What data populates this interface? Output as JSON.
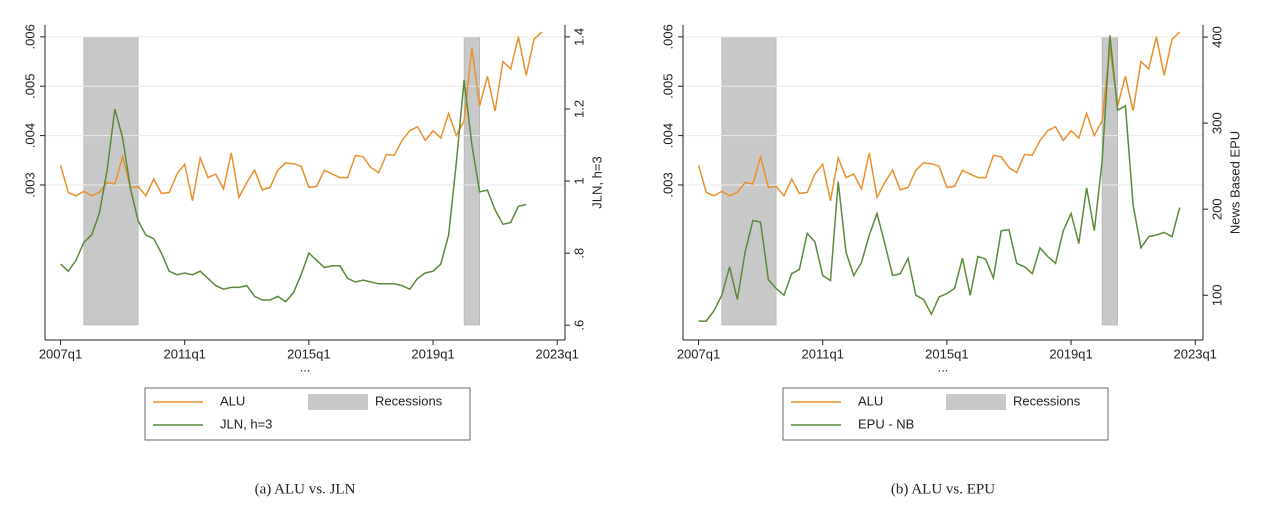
{
  "chart_data": [
    {
      "type": "line",
      "caption": "(a) ALU vs. JLN",
      "x_label": "...",
      "y2_label": "JLN, h=3",
      "x": [
        "2007q1",
        "2007q2",
        "2007q3",
        "2007q4",
        "2008q1",
        "2008q2",
        "2008q3",
        "2008q4",
        "2009q1",
        "2009q2",
        "2009q3",
        "2009q4",
        "2010q1",
        "2010q2",
        "2010q3",
        "2010q4",
        "2011q1",
        "2011q2",
        "2011q3",
        "2011q4",
        "2012q1",
        "2012q2",
        "2012q3",
        "2012q4",
        "2013q1",
        "2013q2",
        "2013q3",
        "2013q4",
        "2014q1",
        "2014q2",
        "2014q3",
        "2014q4",
        "2015q1",
        "2015q2",
        "2015q3",
        "2015q4",
        "2016q1",
        "2016q2",
        "2016q3",
        "2016q4",
        "2017q1",
        "2017q2",
        "2017q3",
        "2017q4",
        "2018q1",
        "2018q2",
        "2018q3",
        "2018q4",
        "2019q1",
        "2019q2",
        "2019q3",
        "2019q4",
        "2020q1",
        "2020q2",
        "2020q3",
        "2020q4",
        "2021q1",
        "2021q2",
        "2021q3",
        "2021q4",
        "2022q1",
        "2022q2",
        "2022q3"
      ],
      "xlim": [
        "2006q3",
        "2023q2"
      ],
      "xticks": [
        "2007q1",
        "2011q1",
        "2015q1",
        "2019q1",
        "2023q1"
      ],
      "ylim": [
        -0.00014,
        0.00624
      ],
      "yticks": [
        {
          "value": 0.003,
          "label": ".003"
        },
        {
          "value": 0.004,
          "label": ".004"
        },
        {
          "value": 0.005,
          "label": ".005"
        },
        {
          "value": 0.006,
          "label": ".006"
        }
      ],
      "y2lim": [
        0.559,
        1.433
      ],
      "y2ticks": [
        {
          "value": 0.6,
          "label": ".6"
        },
        {
          "value": 0.8,
          "label": ".8"
        },
        1,
        {
          "value": 1.2,
          "label": "1.2"
        },
        {
          "value": 1.4,
          "label": "1.4"
        }
      ],
      "grid": true,
      "series": [
        {
          "name": "ALU",
          "color": "#e8912c",
          "values": [
            0.0034,
            0.00285,
            0.00278,
            0.00287,
            0.00278,
            0.00285,
            0.00305,
            0.00302,
            0.00357,
            0.00295,
            0.00297,
            0.00278,
            0.00312,
            0.00283,
            0.00285,
            0.00322,
            0.00342,
            0.00268,
            0.00355,
            0.00315,
            0.00322,
            0.00292,
            0.00365,
            0.00275,
            0.00305,
            0.0033,
            0.0029,
            0.00295,
            0.0033,
            0.00345,
            0.00343,
            0.00338,
            0.00295,
            0.00297,
            0.0033,
            0.00322,
            0.00315,
            0.00315,
            0.0036,
            0.00357,
            0.00335,
            0.00325,
            0.00362,
            0.0036,
            0.0039,
            0.0041,
            0.00418,
            0.0039,
            0.0041,
            0.00395,
            0.00445,
            0.004,
            0.0043,
            0.00578,
            0.0046,
            0.0052,
            0.0045,
            0.0055,
            0.00535,
            0.006,
            0.00522,
            0.00595,
            0.0061
          ]
        },
        {
          "name": "JLN, h=3",
          "color": "#5a8a3a",
          "axis": "y2",
          "values": [
            0.77,
            0.75,
            0.78,
            0.83,
            0.85,
            0.91,
            1.03,
            1.2,
            1.12,
            0.98,
            0.89,
            0.85,
            0.84,
            0.8,
            0.75,
            0.74,
            0.745,
            0.74,
            0.75,
            0.73,
            0.71,
            0.7,
            0.705,
            0.705,
            0.71,
            0.68,
            0.67,
            0.67,
            0.68,
            0.665,
            0.69,
            0.74,
            0.8,
            0.78,
            0.76,
            0.765,
            0.765,
            0.73,
            0.72,
            0.725,
            0.72,
            0.715,
            0.715,
            0.715,
            0.71,
            0.7,
            0.73,
            0.745,
            0.75,
            0.77,
            0.85,
            1.05,
            1.28,
            1.1,
            0.97,
            0.975,
            0.92,
            0.88,
            0.885,
            0.93,
            0.935,
            null,
            null
          ]
        }
      ],
      "recessions": {
        "name": "Recessions",
        "color": "#c8c8c8",
        "periods": [
          [
            "2007q4",
            "2009q2"
          ],
          [
            "2020q1",
            "2020q2"
          ]
        ]
      }
    },
    {
      "type": "line",
      "caption": "(b) ALU vs. EPU",
      "x_label": "...",
      "y2_label": "News Based EPU",
      "x": [
        "2007q1",
        "2007q2",
        "2007q3",
        "2007q4",
        "2008q1",
        "2008q2",
        "2008q3",
        "2008q4",
        "2009q1",
        "2009q2",
        "2009q3",
        "2009q4",
        "2010q1",
        "2010q2",
        "2010q3",
        "2010q4",
        "2011q1",
        "2011q2",
        "2011q3",
        "2011q4",
        "2012q1",
        "2012q2",
        "2012q3",
        "2012q4",
        "2013q1",
        "2013q2",
        "2013q3",
        "2013q4",
        "2014q1",
        "2014q2",
        "2014q3",
        "2014q4",
        "2015q1",
        "2015q2",
        "2015q3",
        "2015q4",
        "2016q1",
        "2016q2",
        "2016q3",
        "2016q4",
        "2017q1",
        "2017q2",
        "2017q3",
        "2017q4",
        "2018q1",
        "2018q2",
        "2018q3",
        "2018q4",
        "2019q1",
        "2019q2",
        "2019q3",
        "2019q4",
        "2020q1",
        "2020q2",
        "2020q3",
        "2020q4",
        "2021q1",
        "2021q2",
        "2021q3",
        "2021q4",
        "2022q1",
        "2022q2",
        "2022q3"
      ],
      "xlim": [
        "2006q3",
        "2023q2"
      ],
      "xticks": [
        "2007q1",
        "2011q1",
        "2015q1",
        "2019q1",
        "2023q1"
      ],
      "ylim": [
        -0.00014,
        0.00624
      ],
      "yticks": [
        {
          "value": 0.003,
          "label": ".003"
        },
        {
          "value": 0.004,
          "label": ".004"
        },
        {
          "value": 0.005,
          "label": ".005"
        },
        {
          "value": 0.006,
          "label": ".006"
        }
      ],
      "y2lim": [
        48,
        414
      ],
      "y2ticks": [
        100,
        200,
        300,
        400
      ],
      "grid": true,
      "series": [
        {
          "name": "ALU",
          "color": "#e8912c",
          "values": [
            0.0034,
            0.00285,
            0.00278,
            0.00287,
            0.00278,
            0.00285,
            0.00305,
            0.00302,
            0.00357,
            0.00295,
            0.00297,
            0.00278,
            0.00312,
            0.00283,
            0.00285,
            0.00322,
            0.00342,
            0.00268,
            0.00355,
            0.00315,
            0.00322,
            0.00292,
            0.00365,
            0.00275,
            0.00305,
            0.0033,
            0.0029,
            0.00295,
            0.0033,
            0.00345,
            0.00343,
            0.00338,
            0.00295,
            0.00297,
            0.0033,
            0.00322,
            0.00315,
            0.00315,
            0.0036,
            0.00357,
            0.00335,
            0.00325,
            0.00362,
            0.0036,
            0.0039,
            0.0041,
            0.00418,
            0.0039,
            0.0041,
            0.00395,
            0.00445,
            0.004,
            0.0043,
            0.00578,
            0.0046,
            0.0052,
            0.0045,
            0.0055,
            0.00535,
            0.006,
            0.00522,
            0.00595,
            0.0061
          ]
        },
        {
          "name": "EPU - NB",
          "color": "#5a8a3a",
          "axis": "y2",
          "values": [
            70,
            70,
            82,
            100,
            133,
            95,
            150,
            187,
            185,
            118,
            108,
            100,
            125,
            130,
            172,
            162,
            123,
            117,
            232,
            150,
            123,
            138,
            170,
            195,
            160,
            123,
            125,
            143,
            100,
            95,
            78,
            98,
            102,
            108,
            143,
            100,
            145,
            142,
            120,
            175,
            176,
            137,
            133,
            125,
            155,
            145,
            137,
            175,
            195,
            160,
            225,
            175,
            255,
            402,
            315,
            320,
            205,
            155,
            168,
            170,
            173,
            168,
            202
          ]
        }
      ],
      "recessions": {
        "name": "Recessions",
        "color": "#c8c8c8",
        "periods": [
          [
            "2007q4",
            "2009q2"
          ],
          [
            "2020q1",
            "2020q2"
          ]
        ]
      }
    }
  ]
}
